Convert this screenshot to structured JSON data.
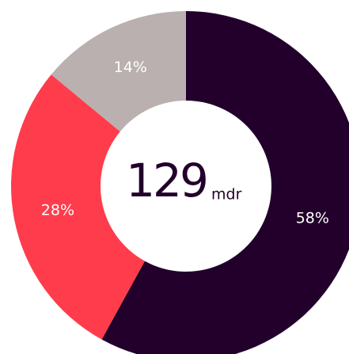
{
  "chart_data": {
    "type": "donut",
    "values": [
      58,
      28,
      14
    ],
    "value_labels": [
      "58%",
      "28%",
      "14%"
    ],
    "colors": [
      "#22002b",
      "#ff3c4b",
      "#bab0b0"
    ],
    "center_label": "129",
    "center_unit": "mdr"
  }
}
